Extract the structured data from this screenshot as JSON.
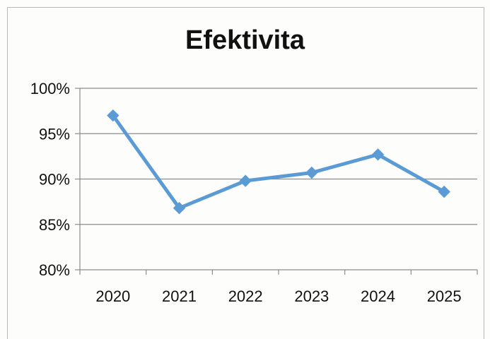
{
  "chart_data": {
    "type": "line",
    "title": "Efektivita",
    "categories": [
      "2020",
      "2021",
      "2022",
      "2023",
      "2024",
      "2025"
    ],
    "series": [
      {
        "values": [
          97,
          86.8,
          89.8,
          90.7,
          92.7,
          88.6
        ],
        "color": "#5b9bd5",
        "marker": "diamond"
      }
    ],
    "ylim": [
      80,
      100
    ],
    "yticks": [
      80,
      85,
      90,
      95,
      100
    ],
    "ytick_labels": [
      "80%",
      "85%",
      "90%",
      "95%",
      "100%"
    ],
    "grid": true,
    "legend": false
  }
}
